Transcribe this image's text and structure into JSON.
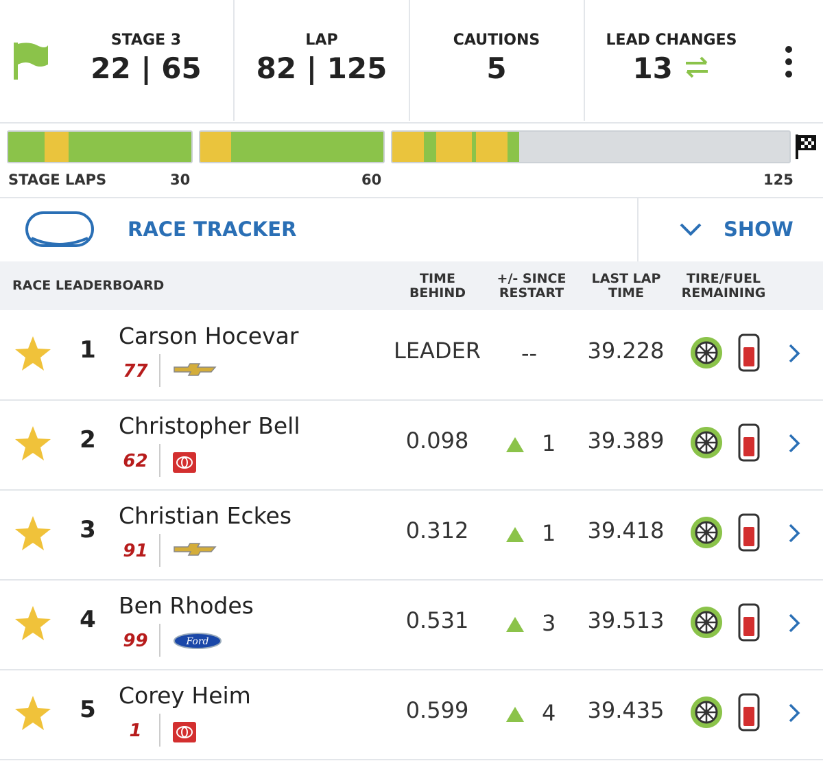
{
  "header": {
    "stats": [
      {
        "label": "STAGE 3",
        "value": "22 | 65"
      },
      {
        "label": "LAP",
        "value": "82 | 125"
      },
      {
        "label": "CAUTIONS",
        "value": "5"
      },
      {
        "label": "LEAD CHANGES",
        "value": "13"
      }
    ]
  },
  "stage_laps": {
    "label": "STAGE LAPS",
    "markers": [
      "30",
      "60",
      "125"
    ]
  },
  "tracker": {
    "title": "RACE TRACKER",
    "toggle": "SHOW"
  },
  "leaderboard": {
    "title": "RACE LEADERBOARD",
    "columns": [
      "TIME BEHIND",
      "+/- SINCE RESTART",
      "LAST LAP TIME",
      "TIRE/FUEL REMAINING"
    ],
    "rows": [
      {
        "position": "1",
        "name": "Carson Hocevar",
        "number": "77",
        "time_behind": "LEADER",
        "change": "--",
        "last_lap": "39.228"
      },
      {
        "position": "2",
        "name": "Christopher Bell",
        "number": "62",
        "time_behind": "0.098",
        "change": "1",
        "last_lap": "39.389"
      },
      {
        "position": "3",
        "name": "Christian Eckes",
        "number": "91",
        "time_behind": "0.312",
        "change": "1",
        "last_lap": "39.418"
      },
      {
        "position": "4",
        "name": "Ben Rhodes",
        "number": "99",
        "make_logo": "Ford",
        "time_behind": "0.531",
        "change": "3",
        "last_lap": "39.513"
      },
      {
        "position": "5",
        "name": "Corey Heim",
        "number": "1",
        "time_behind": "0.599",
        "change": "4",
        "last_lap": "39.435"
      }
    ]
  }
}
